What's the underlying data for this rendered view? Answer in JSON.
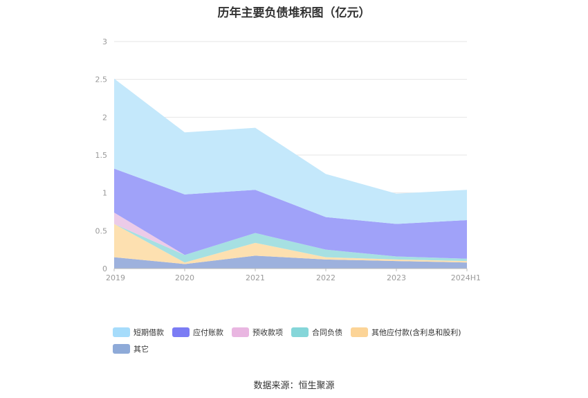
{
  "chart_data": {
    "type": "area",
    "stacked": true,
    "title": "历年主要负债堆积图（亿元）",
    "categories": [
      "2019",
      "2020",
      "2021",
      "2022",
      "2023",
      "2024H1"
    ],
    "ylim": [
      0,
      3
    ],
    "yticks": [
      "0",
      "0.5",
      "1",
      "1.5",
      "2",
      "2.5",
      "3"
    ],
    "grid": true,
    "legend_position": "bottom",
    "series": [
      {
        "name": "其它",
        "color": "#9db1dd",
        "values": [
          0.15,
          0.06,
          0.17,
          0.12,
          0.1,
          0.08
        ]
      },
      {
        "name": "其他应付款(含利息和股利)",
        "color": "#fde0b0",
        "values": [
          0.44,
          0.02,
          0.17,
          0.03,
          0.02,
          0.02
        ]
      },
      {
        "name": "合同负债",
        "color": "#a6e0e2",
        "values": [
          0.0,
          0.1,
          0.13,
          0.1,
          0.04,
          0.03
        ]
      },
      {
        "name": "预收款项",
        "color": "#eccbe8",
        "values": [
          0.15,
          0.0,
          0.0,
          0.0,
          0.0,
          0.0
        ]
      },
      {
        "name": "应付账款",
        "color": "#a0a2f9",
        "values": [
          0.58,
          0.8,
          0.57,
          0.43,
          0.43,
          0.51
        ]
      },
      {
        "name": "短期借款",
        "color": "#c4e8fb",
        "values": [
          1.19,
          0.82,
          0.82,
          0.57,
          0.4,
          0.4
        ]
      }
    ]
  },
  "legend": [
    {
      "label": "短期借款",
      "color": "#a6dcfb"
    },
    {
      "label": "应付账款",
      "color": "#7b7cf4"
    },
    {
      "label": "预收款项",
      "color": "#e9b6e1"
    },
    {
      "label": "合同负债",
      "color": "#85d6d9"
    },
    {
      "label": "其他应付款(含利息和股利)",
      "color": "#fcd497"
    },
    {
      "label": "其它",
      "color": "#8eaad8"
    }
  ],
  "source": "数据来源：恒生聚源"
}
